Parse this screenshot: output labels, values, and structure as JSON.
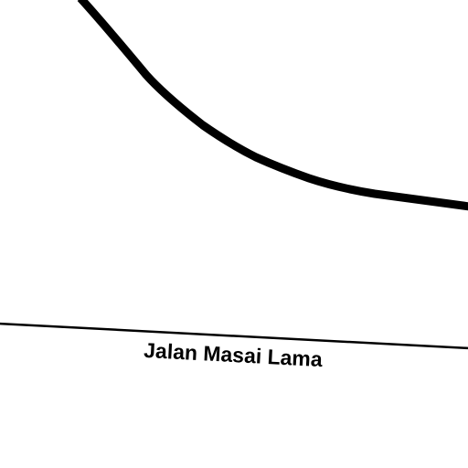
{
  "map": {
    "background": "#ffffff",
    "roads": [
      {
        "id": "major-road",
        "class": "major",
        "label": "",
        "color": "#000000"
      },
      {
        "id": "jalan-masai-lama",
        "class": "minor",
        "label": "Jalan Masai Lama",
        "color": "#000000"
      }
    ]
  }
}
